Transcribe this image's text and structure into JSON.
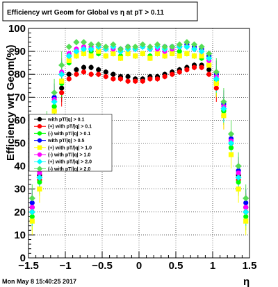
{
  "title": "Efficiency wrt Geom for Global vs   η at pT > 0.11",
  "footer": "Mon May  8 15:40:25 2017",
  "chart_data": {
    "type": "scatter",
    "title": "Efficiency wrt Geom for Global vs   η at pT > 0.11",
    "xlabel": "η",
    "ylabel": "Efficiency wrt Geom(%)",
    "xlim": [
      -1.5,
      1.5
    ],
    "ylim": [
      0,
      100
    ],
    "xticks": [
      "−1.5",
      "−1",
      "−0.5",
      "0",
      "0.5",
      "1",
      "1.5"
    ],
    "yticks": [
      "0",
      "10",
      "20",
      "30",
      "40",
      "50",
      "60",
      "70",
      "80",
      "90",
      "100"
    ],
    "grid": true,
    "legend_position": "left-middle",
    "x": [
      -1.45,
      -1.35,
      -1.25,
      -1.15,
      -1.05,
      -0.95,
      -0.85,
      -0.75,
      -0.65,
      -0.55,
      -0.45,
      -0.35,
      -0.25,
      -0.15,
      -0.05,
      0.05,
      0.15,
      0.25,
      0.35,
      0.45,
      0.55,
      0.65,
      0.75,
      0.85,
      0.95,
      1.05,
      1.15,
      1.25,
      1.35,
      1.45
    ],
    "series": [
      {
        "name": "with pT/|q| > 0.1",
        "color": "#000000",
        "marker": "circle",
        "values": [
          22,
          36,
          52,
          66,
          74,
          80,
          82,
          83,
          83,
          82,
          81,
          80,
          79,
          79,
          78,
          78,
          79,
          79,
          80,
          81,
          82,
          83,
          84,
          84,
          82,
          76,
          64,
          50,
          36,
          22
        ]
      },
      {
        "name": "(+) with pT/|q| > 0.1",
        "color": "#ff0000",
        "marker": "circle",
        "values": [
          20,
          34,
          50,
          64,
          72,
          78,
          80,
          81,
          80,
          80,
          79,
          78,
          78,
          77,
          77,
          77,
          78,
          78,
          79,
          80,
          81,
          82,
          83,
          83,
          80,
          74,
          62,
          48,
          34,
          20
        ]
      },
      {
        "name": "(-) with pT/|q| > 0.1",
        "color": "#00ff00",
        "marker": "circle",
        "values": [
          18,
          33,
          49,
          66,
          76,
          85,
          88,
          89,
          90,
          89,
          88,
          89,
          88,
          89,
          88,
          89,
          88,
          89,
          88,
          90,
          90,
          89,
          88,
          87,
          84,
          77,
          64,
          48,
          33,
          18
        ]
      },
      {
        "name": "with pT/|q| > 0.5",
        "color": "#0000ff",
        "marker": "circle",
        "values": [
          24,
          38,
          55,
          70,
          80,
          88,
          90,
          91,
          91,
          92,
          91,
          92,
          91,
          92,
          91,
          92,
          91,
          92,
          92,
          92,
          92,
          93,
          92,
          91,
          88,
          80,
          67,
          52,
          38,
          24
        ]
      },
      {
        "name": "(+) with pT/|q| > 1.0",
        "color": "#ffff00",
        "marker": "square",
        "values": [
          16,
          30,
          47,
          64,
          77,
          86,
          88,
          89,
          88,
          90,
          88,
          89,
          87,
          89,
          88,
          89,
          87,
          89,
          88,
          89,
          88,
          89,
          88,
          88,
          84,
          76,
          62,
          45,
          30,
          16
        ]
      },
      {
        "name": "(-) with pT/|q| > 1.0",
        "color": "#ff00ff",
        "marker": "circle",
        "values": [
          22,
          37,
          54,
          69,
          81,
          89,
          91,
          92,
          92,
          92,
          91,
          91,
          90,
          91,
          91,
          92,
          91,
          91,
          90,
          91,
          92,
          92,
          91,
          90,
          86,
          79,
          66,
          51,
          37,
          22
        ]
      },
      {
        "name": "(+) with pT/|q| > 2.0",
        "color": "#00ffff",
        "marker": "diamond",
        "values": [
          20,
          35,
          52,
          68,
          80,
          88,
          90,
          91,
          91,
          92,
          91,
          92,
          90,
          91,
          91,
          92,
          91,
          92,
          91,
          92,
          92,
          92,
          91,
          90,
          87,
          78,
          65,
          50,
          35,
          20
        ]
      },
      {
        "name": "(-) with pT/|q| > 2.0",
        "color": "#55dd55",
        "marker": "diamond",
        "values": [
          26,
          40,
          58,
          72,
          84,
          92,
          94,
          94,
          93,
          93,
          92,
          93,
          91,
          92,
          92,
          93,
          92,
          93,
          92,
          92,
          93,
          94,
          93,
          92,
          89,
          81,
          68,
          54,
          40,
          26
        ]
      }
    ]
  }
}
